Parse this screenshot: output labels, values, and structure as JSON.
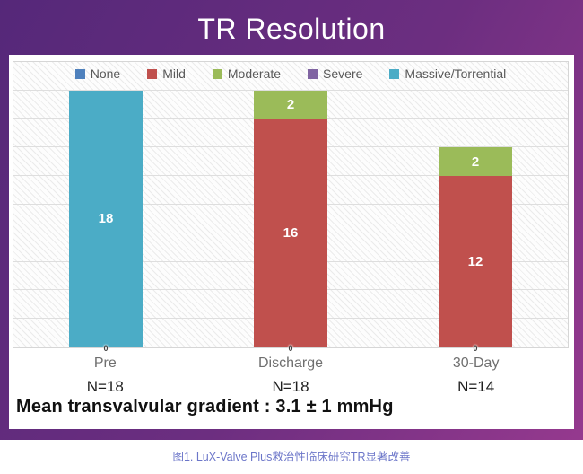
{
  "header": {
    "title": "TR Resolution"
  },
  "footnote": "Mean transvalvular gradient : 3.1 ± 1 mmHg",
  "caption": "图1. LuX-Valve Plus救治性临床研究TR显著改善",
  "colors": {
    "frame_gradient_start": "#552879",
    "frame_gradient_mid": "#6C2E80",
    "frame_gradient_end": "#95398E",
    "caption_text": "#6C76C9"
  },
  "chart_data": {
    "type": "bar",
    "stacked": true,
    "title": "TR Resolution",
    "categories": [
      "Pre",
      "Discharge",
      "30-Day"
    ],
    "category_sublabels": [
      "N=18",
      "N=18",
      "N=14"
    ],
    "series": [
      {
        "name": "None",
        "color": "#4F81BD",
        "values": [
          0,
          0,
          0
        ]
      },
      {
        "name": "Mild",
        "color": "#C0504D",
        "values": [
          0,
          16,
          12
        ]
      },
      {
        "name": "Moderate",
        "color": "#9BBB59",
        "values": [
          0,
          2,
          2
        ]
      },
      {
        "name": "Severe",
        "color": "#8064A2",
        "values": [
          0,
          0,
          0
        ]
      },
      {
        "name": "Massive/Torrential",
        "color": "#4BACC6",
        "values": [
          18,
          0,
          0
        ]
      }
    ],
    "totals": [
      18,
      18,
      14
    ],
    "baseline_zero_label": "0",
    "ylim": [
      0,
      20
    ],
    "gridline_step": 2,
    "grid": true,
    "legend_position": "top",
    "y_axis_labels_visible": false
  }
}
